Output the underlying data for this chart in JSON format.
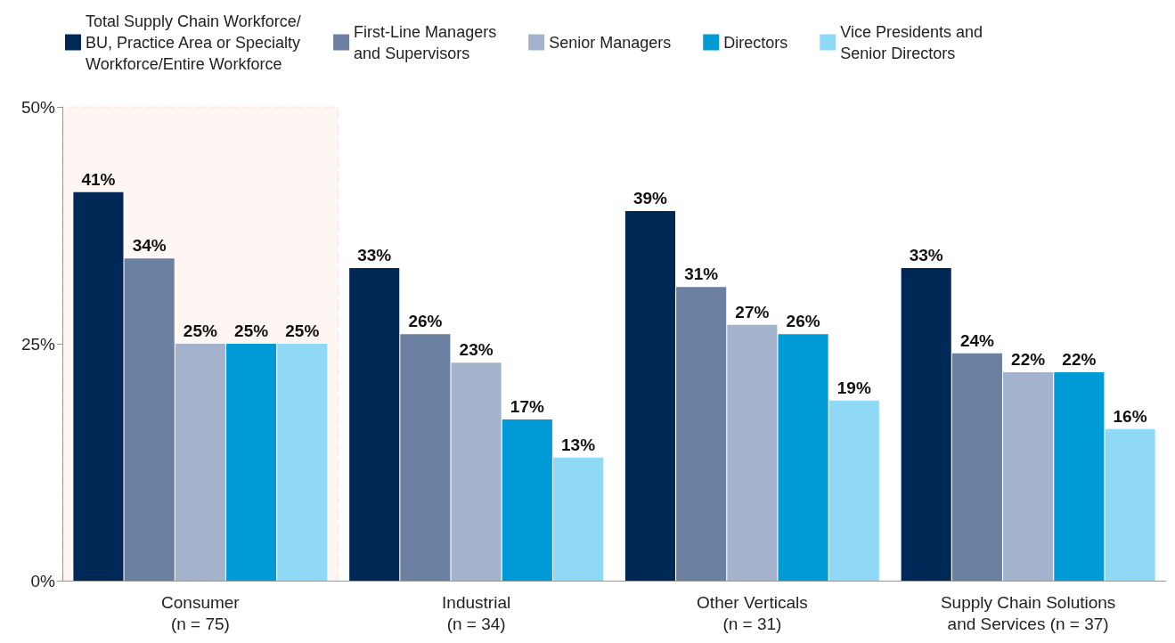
{
  "chart_data": {
    "type": "bar",
    "categories": [
      "Consumer\n(n = 75)",
      "Industrial\n(n = 34)",
      "Other Verticals\n(n = 31)",
      "Supply Chain Solutions\nand Services (n = 37)"
    ],
    "series": [
      {
        "name": "Total Supply Chain Workforce/\nBU, Practice Area or Specialty\nWorkforce/Entire Workforce",
        "color": "#002856",
        "values": [
          41,
          33,
          39,
          33
        ],
        "value_labels": [
          "41%",
          "33%",
          "39%",
          "33%"
        ]
      },
      {
        "name": "First-Line Managers\nand Supervisors",
        "color": "#6b7fa0",
        "values": [
          34,
          26,
          31,
          24
        ],
        "value_labels": [
          "34%",
          "26%",
          "31%",
          "24%"
        ]
      },
      {
        "name": "Senior Managers",
        "color": "#a3b3cc",
        "values": [
          25,
          23,
          27,
          22
        ],
        "value_labels": [
          "25%",
          "23%",
          "27%",
          "22%"
        ]
      },
      {
        "name": "Directors",
        "color": "#009ad7",
        "values": [
          25,
          17,
          26,
          22
        ],
        "value_labels": [
          "25%",
          "17%",
          "26%",
          "22%"
        ]
      },
      {
        "name": "Vice Presidents and\nSenior Directors",
        "color": "#8fd9f6",
        "values": [
          25,
          13,
          19,
          16
        ],
        "value_labels": [
          "25%",
          "13%",
          "19%",
          "16%"
        ]
      }
    ],
    "ylim": [
      0,
      50
    ],
    "yticks": [
      {
        "value": 0,
        "label": "0%"
      },
      {
        "value": 25,
        "label": "25%"
      },
      {
        "value": 50,
        "label": "50%"
      }
    ],
    "grid": false,
    "legend": "top",
    "bands": [
      {
        "axis": "x",
        "from": "Consumer\n(n = 75)",
        "to": "Consumer\n(n = 75)",
        "color": "#f26522"
      }
    ]
  }
}
